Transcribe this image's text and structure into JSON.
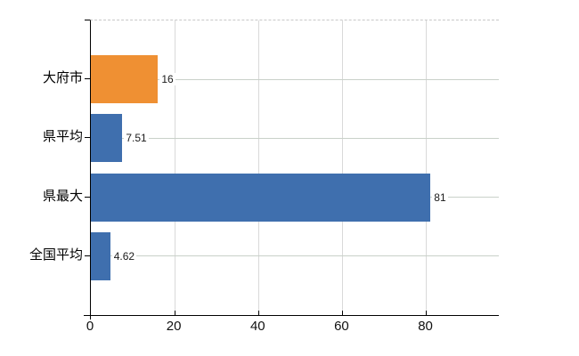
{
  "chart_data": {
    "type": "bar",
    "orientation": "horizontal",
    "title": "",
    "categories": [
      "大府市",
      "県平均",
      "県最大",
      "全国平均"
    ],
    "values": [
      16,
      7.51,
      81,
      4.62
    ],
    "value_labels": [
      "16",
      "7.51",
      "81",
      "4.62"
    ],
    "bar_colors": [
      "#ef9033",
      "#3f6fae",
      "#3f6fae",
      "#3f6fae"
    ],
    "xtick_labels": [
      "0",
      "20",
      "40",
      "60",
      "80"
    ],
    "xtick_values": [
      0,
      20,
      40,
      60,
      80
    ],
    "xlim": [
      0,
      97.3
    ],
    "grid": true,
    "legend": false,
    "background": "#ffffff",
    "axis_color": "#000000",
    "vertical_grid_color": "#d9d9d9",
    "row_grid_color": "#c9d1c9",
    "plot_top_border_style": "dashed"
  }
}
